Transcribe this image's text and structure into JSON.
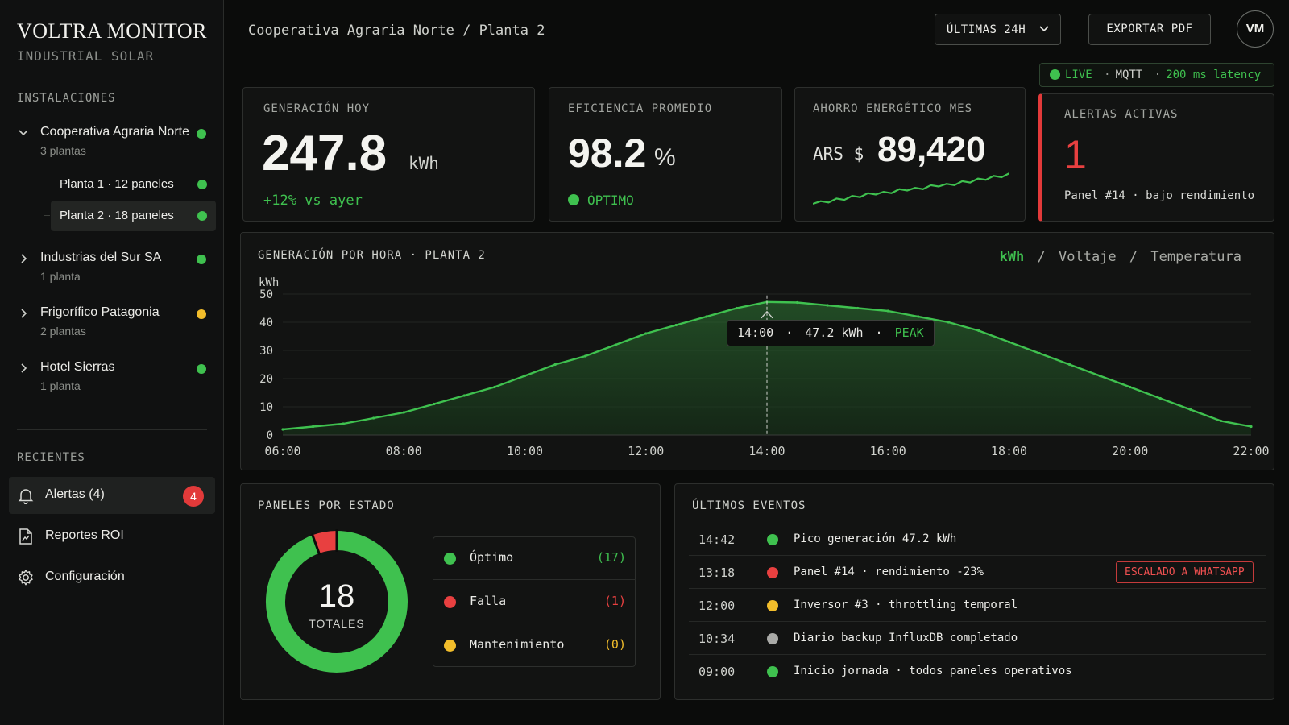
{
  "brand": {
    "title": "VOLTRA MONITOR",
    "subtitle": "INDUSTRIAL SOLAR"
  },
  "sidebar": {
    "installations_title": "INSTALACIONES",
    "sites": [
      {
        "name": "Cooperativa Agraria Norte",
        "sub": "3 plantas",
        "status": "green",
        "expanded": true
      },
      {
        "name": "Industrias del Sur SA",
        "sub": "1 planta",
        "status": "green",
        "expanded": false
      },
      {
        "name": "Frigorífico Patagonia",
        "sub": "2 plantas",
        "status": "yellow",
        "expanded": false
      },
      {
        "name": "Hotel Sierras",
        "sub": "1 planta",
        "status": "green",
        "expanded": false
      }
    ],
    "plants": [
      {
        "name": "Planta 1 · 12 paneles",
        "status": "green",
        "active": false
      },
      {
        "name": "Planta 2 · 18 paneles",
        "status": "green",
        "active": true
      }
    ],
    "recent_title": "RECIENTES",
    "recent": [
      {
        "label": "Alertas (4)",
        "icon": "bell-icon",
        "badge": "4"
      },
      {
        "label": "Reportes ROI",
        "icon": "report-icon"
      },
      {
        "label": "Configuración",
        "icon": "gear-icon"
      }
    ]
  },
  "header": {
    "breadcrumb": "Cooperativa Agraria Norte / Planta 2",
    "range_label": "ÚLTIMAS 24H",
    "export_label": "EXPORTAR PDF",
    "avatar": "VM",
    "live": {
      "label": "LIVE",
      "sep": "·",
      "protocol": "MQTT",
      "latency": "200 ms latency"
    }
  },
  "kpis": {
    "generation": {
      "title": "GENERACIÓN HOY",
      "value": "247.8",
      "unit": "kWh",
      "delta": "+12% vs ayer"
    },
    "efficiency": {
      "title": "EFICIENCIA PROMEDIO",
      "value": "98.2",
      "unit": "%",
      "status": "ÓPTIMO"
    },
    "savings": {
      "title": "AHORRO ENERGÉTICO MES",
      "currency": "ARS $",
      "value": "89,420",
      "sparkline": [
        3,
        5,
        4,
        7,
        6,
        9,
        8,
        11,
        10,
        12,
        11,
        14,
        13,
        15,
        14,
        17,
        16,
        18,
        17,
        20,
        19,
        22,
        21,
        24,
        23,
        26
      ]
    },
    "alerts": {
      "title": "ALERTAS ACTIVAS",
      "value": "1",
      "detail": "Panel #14 · bajo rendimiento"
    }
  },
  "chart": {
    "title": "GENERACIÓN POR HORA · PLANTA 2",
    "toggle": {
      "active": "kWh",
      "sep": "/",
      "opt2": "Voltaje",
      "opt3": "Temperatura"
    },
    "tooltip": {
      "time": "14:00",
      "sep1": "·",
      "value": "47.2 kWh",
      "sep2": "·",
      "tag": "PEAK"
    }
  },
  "chart_data": {
    "type": "area",
    "ylabel": "kWh",
    "ylim": [
      0,
      50
    ],
    "yticks": [
      "0",
      "10",
      "20",
      "30",
      "40",
      "50"
    ],
    "xticks": [
      "06:00",
      "08:00",
      "10:00",
      "12:00",
      "14:00",
      "16:00",
      "18:00",
      "20:00",
      "22:00"
    ],
    "x_hours": [
      6,
      6.5,
      7,
      7.5,
      8,
      8.5,
      9,
      9.5,
      10,
      10.5,
      11,
      11.5,
      12,
      12.5,
      13,
      13.5,
      14,
      14.5,
      15,
      15.5,
      16,
      16.5,
      17,
      17.5,
      18,
      18.5,
      19,
      19.5,
      20,
      20.5,
      21,
      21.5,
      22
    ],
    "values": [
      2,
      3,
      4,
      6,
      8,
      11,
      14,
      17,
      21,
      25,
      28,
      32,
      36,
      39,
      42,
      45,
      47.2,
      47,
      46,
      45,
      44,
      42,
      40,
      37,
      33,
      29,
      25,
      21,
      17,
      13,
      9,
      5,
      3
    ],
    "peak": {
      "x": "14:00",
      "y": 47.2
    }
  },
  "panels": {
    "title": "PANELES POR ESTADO",
    "total": "18",
    "total_label": "TOTALES",
    "legend": [
      {
        "label": "Óptimo",
        "count": "(17)",
        "value": 17,
        "color": "#3fc14f"
      },
      {
        "label": "Falla",
        "count": "(1)",
        "value": 1,
        "color": "#e84040"
      },
      {
        "label": "Mantenimiento",
        "count": "(0)",
        "value": 0,
        "color": "#f2bd2b"
      }
    ]
  },
  "events": {
    "title": "ÚLTIMOS EVENTOS",
    "items": [
      {
        "time": "14:42",
        "text": "Pico generación 47.2 kWh",
        "color": "#3fc14f"
      },
      {
        "time": "13:18",
        "text": "Panel #14 · rendimiento -23%",
        "color": "#e84040",
        "tag": "ESCALADO A WHATSAPP"
      },
      {
        "time": "12:00",
        "text": "Inversor #3 · throttling temporal",
        "color": "#f2bd2b"
      },
      {
        "time": "10:34",
        "text": "Diario backup InfluxDB completado",
        "color": "#a9aaa7"
      },
      {
        "time": "09:00",
        "text": "Inicio jornada · todos paneles operativos",
        "color": "#3fc14f"
      }
    ]
  },
  "colors": {
    "accent": "#3fc14f",
    "danger": "#e84040",
    "warning": "#f2bd2b"
  }
}
